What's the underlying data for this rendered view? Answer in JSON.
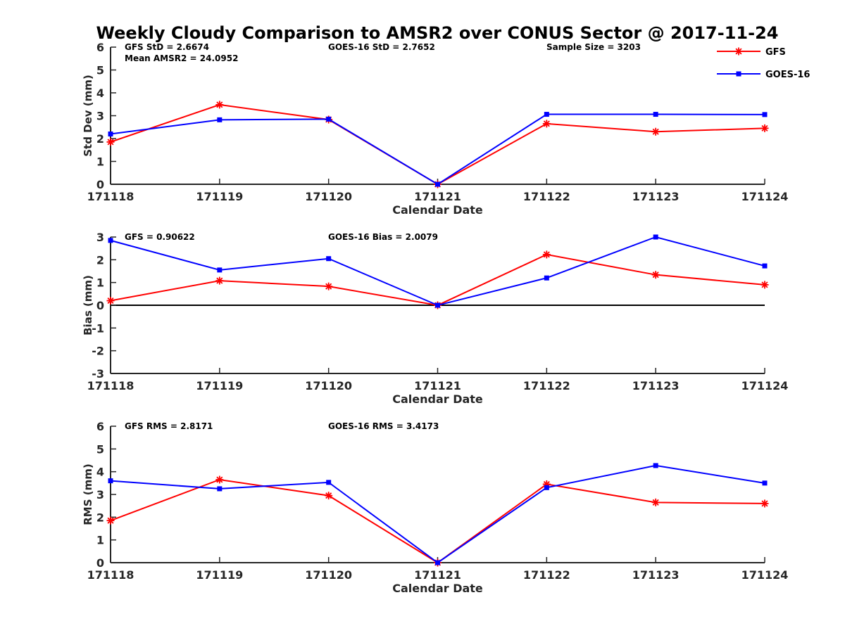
{
  "chart_data": {
    "type": "line",
    "title": "Weekly Cloudy Comparison to AMSR2 over CONUS Sector @ 2017-11-24",
    "xlabel": "Calendar Date",
    "categories": [
      "171118",
      "171119",
      "171120",
      "171121",
      "171122",
      "171123",
      "171124"
    ],
    "colors": {
      "GFS": "#ff0000",
      "GOES-16": "#0000ff",
      "zero_line": "#000000"
    },
    "legend": {
      "placement": "top-right",
      "entries": [
        {
          "name": "GFS",
          "marker": "asterisk"
        },
        {
          "name": "GOES-16",
          "marker": "square"
        }
      ]
    },
    "panels": [
      {
        "name": "stddev",
        "ylabel": "Std Dev (mm)",
        "ylim": [
          0,
          6
        ],
        "yticks": [
          "0",
          "1",
          "2",
          "3",
          "4",
          "5",
          "6"
        ],
        "annotations": [
          {
            "text": "GFS StD = 2.6674",
            "column": "left",
            "row": 1
          },
          {
            "text": "Mean AMSR2 = 24.0952",
            "column": "left",
            "row": 2
          },
          {
            "text": "GOES-16 StD = 2.7652",
            "column": "middle",
            "row": 1
          },
          {
            "text": "Sample Size = 3203",
            "column": "right",
            "row": 1
          }
        ],
        "series": [
          {
            "name": "GFS",
            "values": [
              1.85,
              3.48,
              2.83,
              0.0,
              2.65,
              2.3,
              2.45
            ]
          },
          {
            "name": "GOES-16",
            "values": [
              2.2,
              2.82,
              2.85,
              0.0,
              3.06,
              3.06,
              3.05
            ]
          }
        ]
      },
      {
        "name": "bias",
        "ylabel": "Bias (mm)",
        "ylim": [
          -3,
          3
        ],
        "yticks": [
          "-3",
          "-2",
          "-1",
          "0",
          "1",
          "2",
          "3"
        ],
        "zero_line": true,
        "annotations": [
          {
            "text": "GFS = 0.90622",
            "column": "left",
            "row": 1
          },
          {
            "text": "GOES-16 Bias  = 2.0079",
            "column": "middle",
            "row": 1
          }
        ],
        "series": [
          {
            "name": "GFS",
            "values": [
              0.2,
              1.08,
              0.83,
              0.0,
              2.23,
              1.34,
              0.9
            ]
          },
          {
            "name": "GOES-16",
            "values": [
              2.85,
              1.55,
              2.05,
              0.0,
              1.2,
              3.0,
              1.73
            ]
          }
        ]
      },
      {
        "name": "rms",
        "ylabel": "RMS (mm)",
        "ylim": [
          0,
          6
        ],
        "yticks": [
          "0",
          "1",
          "2",
          "3",
          "4",
          "5",
          "6"
        ],
        "annotations": [
          {
            "text": "GFS RMS = 2.8171",
            "column": "left",
            "row": 1
          },
          {
            "text": "GOES-16 RMS = 3.4173",
            "column": "middle",
            "row": 1
          }
        ],
        "series": [
          {
            "name": "GFS",
            "values": [
              1.85,
              3.65,
              2.95,
              0.0,
              3.45,
              2.65,
              2.6
            ]
          },
          {
            "name": "GOES-16",
            "values": [
              3.6,
              3.25,
              3.53,
              0.0,
              3.3,
              4.27,
              3.5
            ]
          }
        ]
      }
    ]
  }
}
